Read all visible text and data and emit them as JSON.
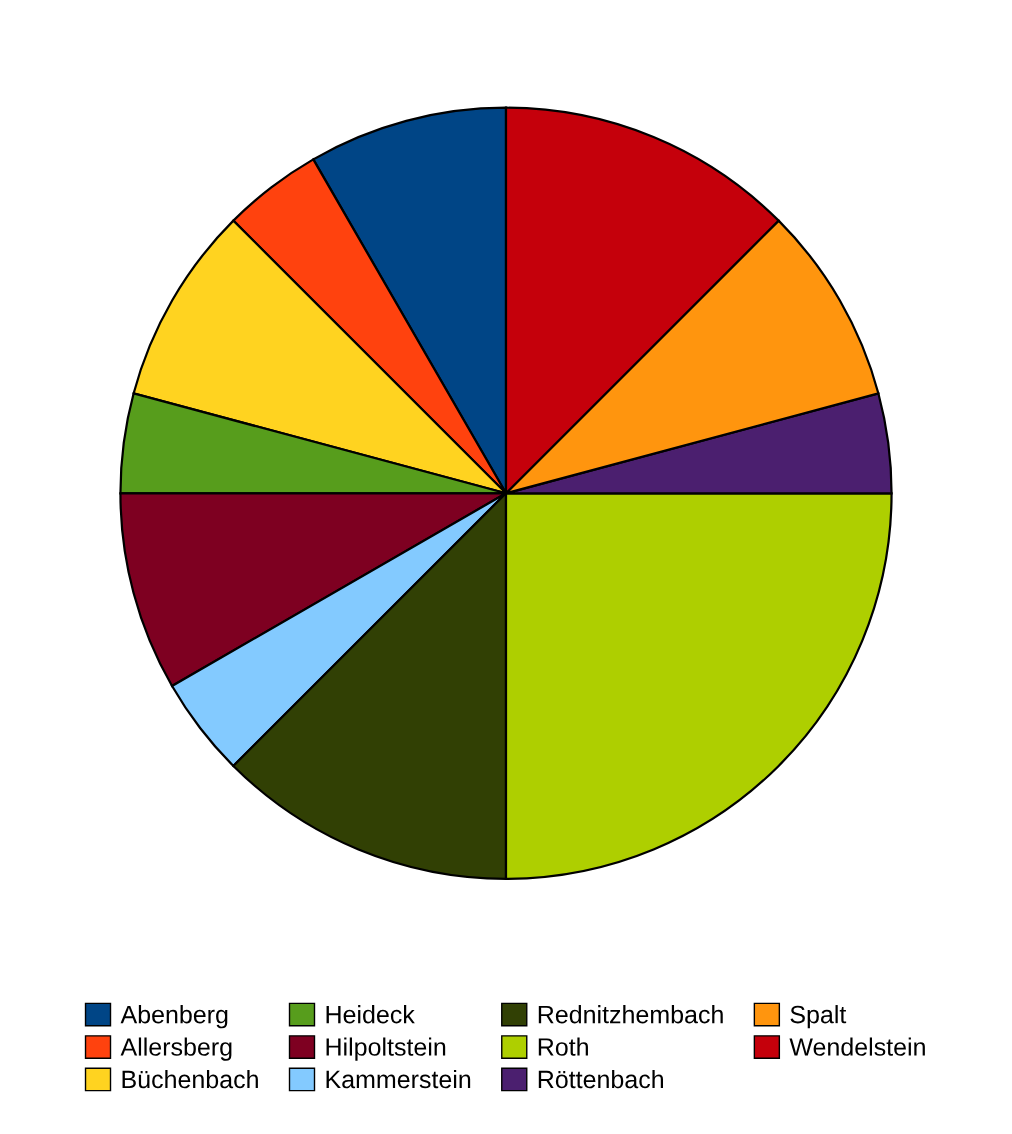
{
  "chart_data": {
    "type": "pie",
    "categories": [
      "Abenberg",
      "Allersberg",
      "Büchenbach",
      "Heideck",
      "Hilpoltstein",
      "Kammerstein",
      "Rednitzhembach",
      "Roth",
      "Röttenbach",
      "Spalt",
      "Wendelstein"
    ],
    "values": [
      8.33,
      4.17,
      8.33,
      4.17,
      8.33,
      4.17,
      12.5,
      25,
      4.17,
      8.33,
      12.5
    ],
    "colors": [
      "#004586",
      "#ff420e",
      "#ffd320",
      "#579d1c",
      "#7e0021",
      "#83caff",
      "#314004",
      "#aecf00",
      "#4b1f6f",
      "#ff950e",
      "#c5000b"
    ],
    "legend": "bottom"
  }
}
